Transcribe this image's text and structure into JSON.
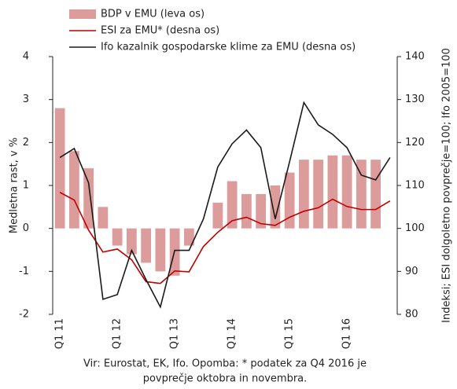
{
  "chart_data": {
    "type": "bar",
    "categories": [
      "Q1 11",
      null,
      null,
      null,
      "Q1 12",
      null,
      null,
      null,
      "Q1 13",
      null,
      null,
      null,
      "Q1 14",
      null,
      null,
      null,
      "Q1 15",
      null,
      null,
      null,
      "Q1 16",
      null,
      null,
      null
    ],
    "series": [
      {
        "name": "BDP v EMU (leva os)",
        "type": "bar",
        "color": "#dc9c9b",
        "axis": "y",
        "values": [
          2.8,
          1.8,
          1.4,
          0.5,
          -0.4,
          -0.6,
          -0.8,
          -1.0,
          -1.1,
          -0.4,
          0.0,
          0.6,
          1.1,
          0.8,
          0.8,
          1.0,
          1.3,
          1.6,
          1.6,
          1.7,
          1.7,
          1.6,
          1.6,
          null
        ]
      },
      {
        "name": "ESI za EMU* (desna os)",
        "type": "line",
        "color": "#c00000",
        "axis": "y2",
        "values": [
          108.4,
          106.6,
          99.6,
          94.5,
          95.2,
          92.7,
          87.6,
          87.2,
          90.1,
          89.9,
          95.8,
          99.1,
          101.8,
          102.6,
          101.1,
          100.7,
          102.6,
          104.0,
          104.8,
          106.8,
          105.1,
          104.4,
          104.4,
          106.4
        ]
      },
      {
        "name": "Ifo kazalnik gospodarske klime za EMU (desna os)",
        "type": "line",
        "color": "#1a1a1a",
        "axis": "y2",
        "values": [
          116.5,
          118.6,
          110.6,
          83.5,
          84.6,
          94.9,
          88.1,
          81.7,
          94.9,
          94.9,
          102.2,
          114.3,
          119.7,
          122.9,
          118.8,
          102.2,
          115.5,
          129.3,
          124.1,
          121.9,
          118.8,
          112.4,
          111.3,
          116.5
        ]
      }
    ],
    "ylabel": "Medletna rast, v %",
    "y2label": "Indeksi; ESI dolgoletno povprečje=100; Ifo 2005=100",
    "ylim": [
      -2,
      4
    ],
    "yticks": [
      -2,
      -1,
      0,
      1,
      2,
      3,
      4
    ],
    "y2lim": [
      80,
      140
    ],
    "y2ticks": [
      80,
      90,
      100,
      110,
      120,
      130,
      140
    ],
    "footnote": [
      "Vir: Eurostat, EK, Ifo. Opomba: * podatek za Q4 2016 je",
      "povprečje oktobra in novembra."
    ]
  }
}
